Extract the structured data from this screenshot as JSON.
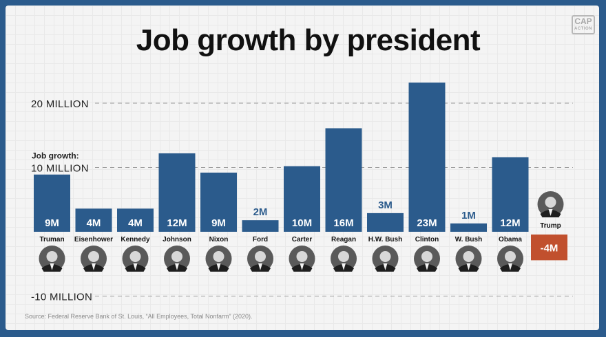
{
  "title": "Job growth by president",
  "logo": {
    "line1": "CAP",
    "line2": "ACTION"
  },
  "source": "Source: Federal Reserve Bank of St. Louis, “All Employees, Total Nonfarm” (2020).",
  "colors": {
    "positive_bar": "#2b5b8c",
    "negative_bar": "#c1502e",
    "frame": "#2b5b8c"
  },
  "chart_data": {
    "type": "bar",
    "title": "Job growth by president",
    "ylabel": "Job growth:",
    "yticks": [
      {
        "value": 20,
        "label": "20 MILLION"
      },
      {
        "value": 10,
        "label": "10 MILLION"
      },
      {
        "value": -10,
        "label": "-10 MILLION"
      }
    ],
    "ylim": [
      -10,
      23
    ],
    "grid": true,
    "categories": [
      "Truman",
      "Eisenhower",
      "Kennedy",
      "Johnson",
      "Nixon",
      "Ford",
      "Carter",
      "Reagan",
      "H.W. Bush",
      "Clinton",
      "W. Bush",
      "Obama",
      "Trump"
    ],
    "values": [
      8.9,
      3.6,
      3.6,
      12.2,
      9.2,
      1.8,
      10.2,
      16.1,
      2.9,
      23.2,
      1.3,
      11.6,
      -4
    ],
    "data_labels": [
      "9M",
      "4M",
      "4M",
      "12M",
      "9M",
      "2M",
      "10M",
      "16M",
      "3M",
      "23M",
      "1M",
      "12M",
      "-4M"
    ]
  }
}
